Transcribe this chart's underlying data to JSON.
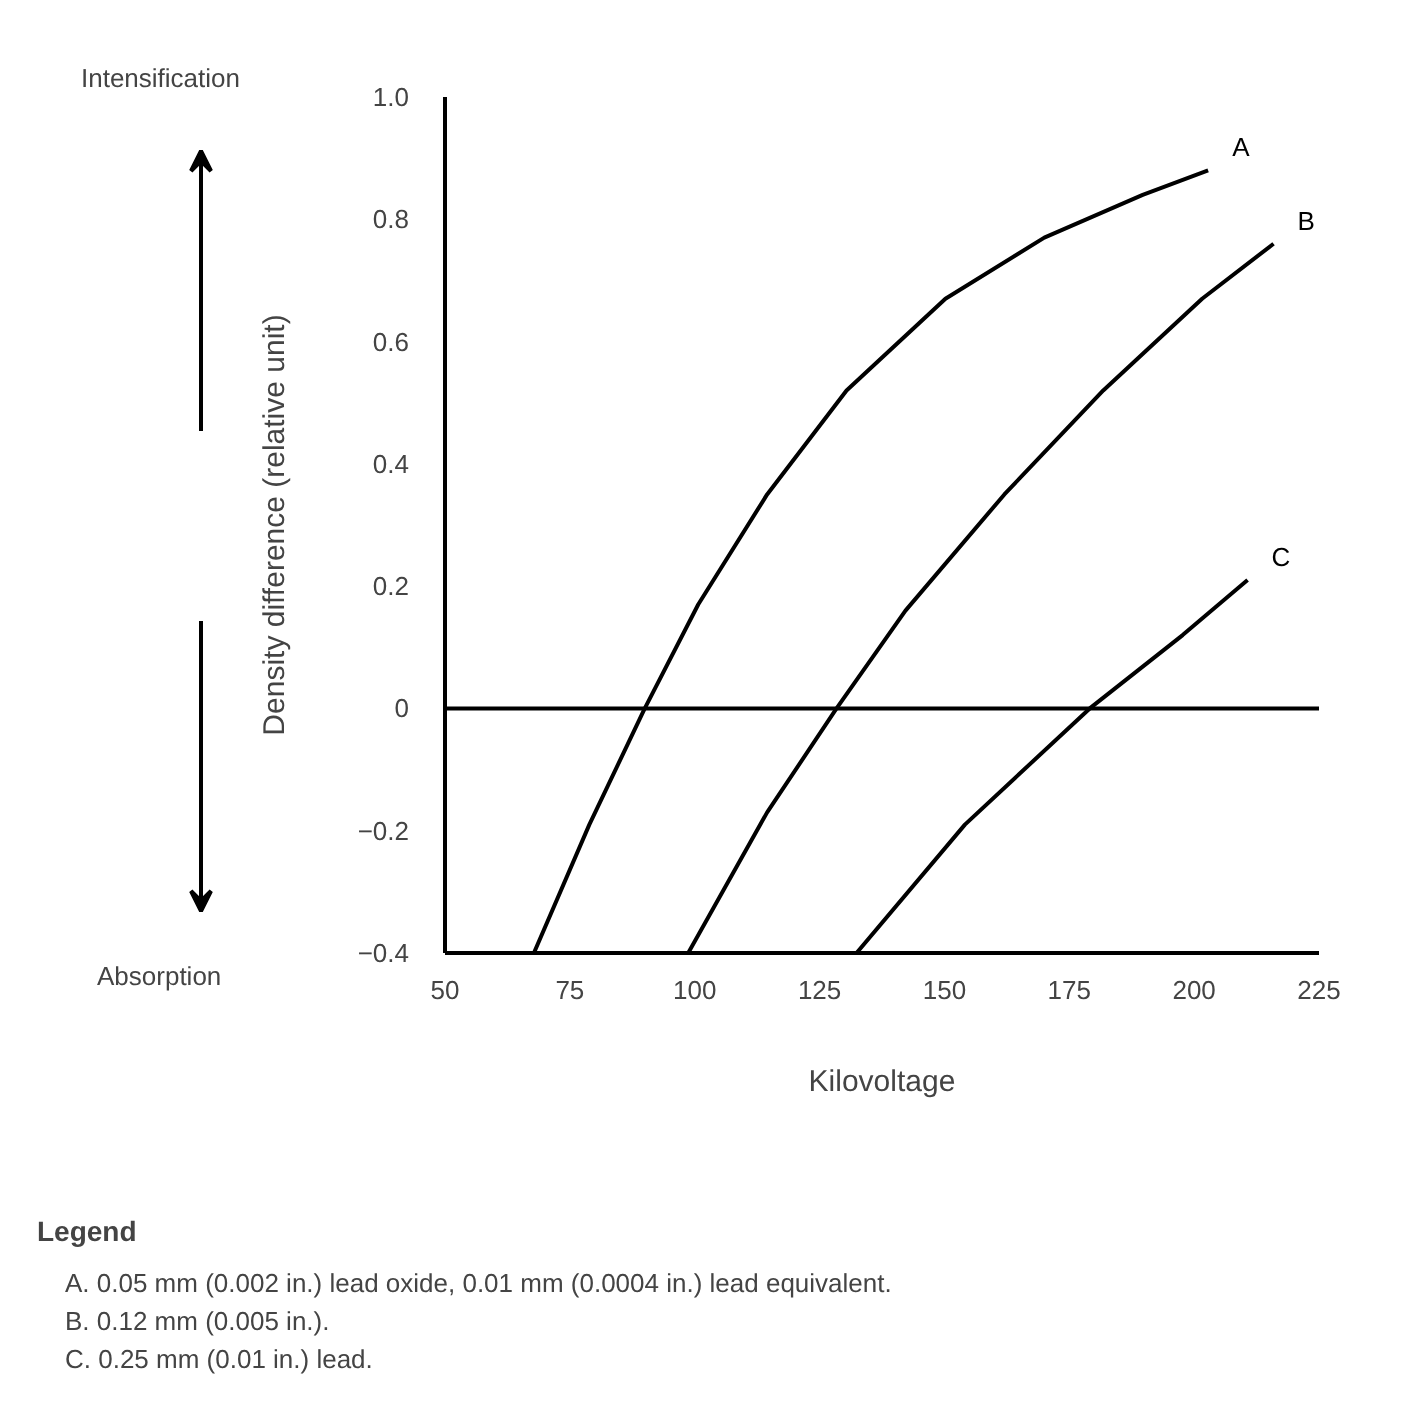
{
  "chart_data": {
    "type": "line",
    "xlabel": "Kilovoltage",
    "ylabel": "Density difference (relative unit)",
    "xlim": [
      50,
      225
    ],
    "xticks": [
      50,
      75,
      100,
      125,
      150,
      175,
      200,
      225
    ],
    "ylim": [
      -0.4,
      1.0
    ],
    "yticks": [
      {
        "value": -0.4,
        "label": "−0.4"
      },
      {
        "value": -0.2,
        "label": "−0.2"
      },
      0,
      0.2,
      0.4,
      0.6,
      0.8,
      {
        "value": 1.0,
        "label": "1.0"
      }
    ],
    "grid": false,
    "marker": "none",
    "line_style": "solid",
    "series": [
      {
        "name": "A",
        "color": "#000000",
        "x": [
          67.8,
          78.9,
          90,
          100.7,
          114.5,
          130.4,
          150.2,
          170,
          189.7,
          202.8
        ],
        "values": [
          -0.4,
          -0.19,
          0,
          0.17,
          0.35,
          0.52,
          0.67,
          0.77,
          0.84,
          0.88
        ]
      },
      {
        "name": "B",
        "color": "#000000",
        "x": [
          98.7,
          114.5,
          128.4,
          142.2,
          162,
          181.8,
          201.6,
          215.9
        ],
        "values": [
          -0.4,
          -0.17,
          0,
          0.16,
          0.35,
          0.52,
          0.67,
          0.76
        ]
      },
      {
        "name": "C",
        "color": "#000000",
        "x": [
          132.4,
          154.1,
          179.1,
          197.7,
          210.7
        ],
        "values": [
          -0.4,
          -0.19,
          0,
          0.12,
          0.21
        ]
      }
    ],
    "ref_lines": [
      {
        "axis": "y",
        "value": 0,
        "color": "#000000"
      }
    ],
    "annotations": [
      "Intensification",
      "Absorption",
      "Legend",
      "A. 0.05 mm (0.002 in.) lead oxide, 0.01 mm (0.0004 in.) lead equivalent.",
      "B. 0.12 mm (0.005 in.).",
      "C. 0.25 mm (0.01 in.) lead."
    ]
  }
}
